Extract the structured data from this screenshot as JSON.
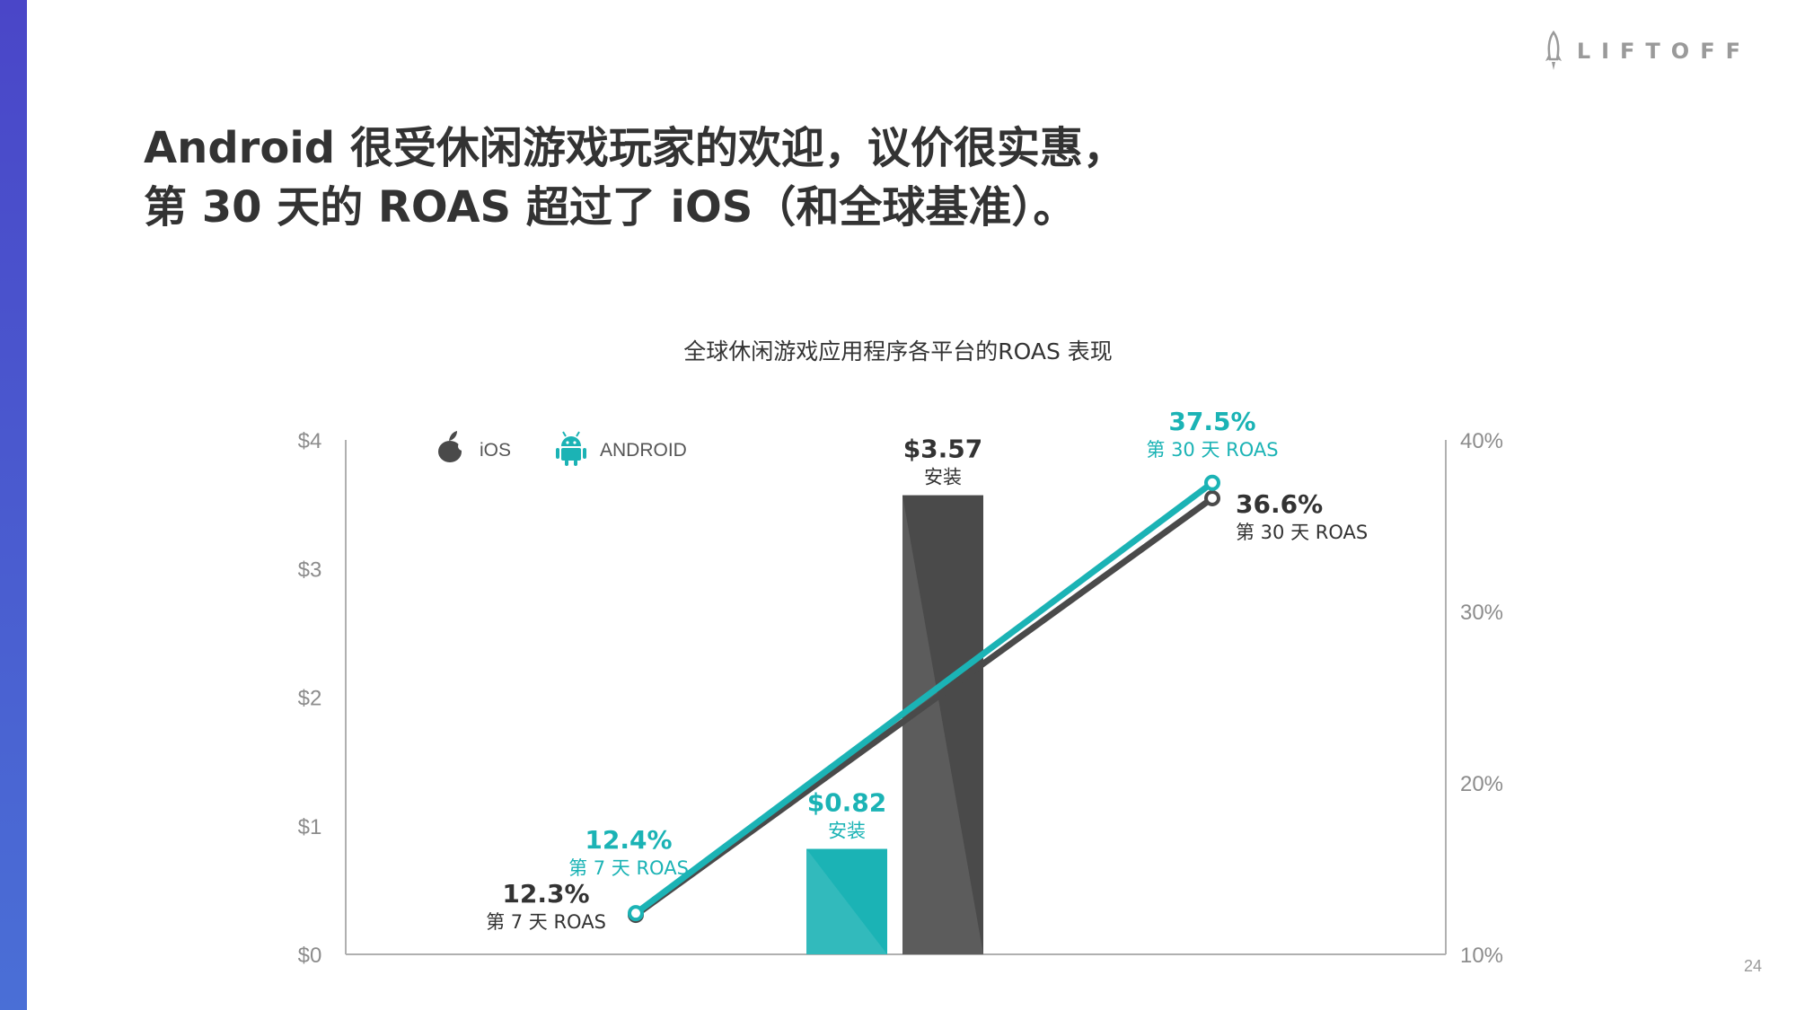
{
  "logo": {
    "text": "LIFTOFF",
    "icon": "rocket-icon"
  },
  "headline": {
    "line1": "Android 很受休闲游戏玩家的欢迎，议价很实惠，",
    "line2": "第 30 天的 ROAS 超过了 iOS（和全球基准）。"
  },
  "page_number": "24",
  "colors": {
    "ios": "#4a4a4a",
    "android": "#1bb3b5",
    "accent_bar": "#4a46c8"
  },
  "chart_data": {
    "type": "bar+line",
    "title": "全球休闲游戏应用程序各平台的ROAS 表现",
    "legend": [
      {
        "name": "iOS",
        "icon": "apple-icon",
        "color": "#4a4a4a"
      },
      {
        "name": "ANDROID",
        "icon": "android-icon",
        "color": "#1bb3b5"
      }
    ],
    "left_axis": {
      "min": 0,
      "max": 4,
      "ticks": [
        "$0",
        "$1",
        "$2",
        "$3",
        "$4"
      ]
    },
    "right_axis": {
      "min": 10,
      "max": 40,
      "ticks": [
        "10%",
        "20%",
        "30%",
        "40%"
      ]
    },
    "bars": [
      {
        "series": "ANDROID",
        "value": 0.82,
        "label": "$0.82",
        "sublabel": "安装"
      },
      {
        "series": "iOS",
        "value": 3.57,
        "label": "$3.57",
        "sublabel": "安装"
      }
    ],
    "lines": [
      {
        "series": "iOS",
        "points": [
          {
            "x": "第 7 天",
            "y": 12.3,
            "label": "12.3%",
            "sublabel": "第 7 天 ROAS"
          },
          {
            "x": "第 30 天",
            "y": 36.6,
            "label": "36.6%",
            "sublabel": "第 30 天 ROAS"
          }
        ]
      },
      {
        "series": "ANDROID",
        "points": [
          {
            "x": "第 7 天",
            "y": 12.4,
            "label": "12.4%",
            "sublabel": "第 7 天 ROAS"
          },
          {
            "x": "第 30 天",
            "y": 37.5,
            "label": "37.5%",
            "sublabel": "第 30 天 ROAS"
          }
        ]
      }
    ]
  }
}
